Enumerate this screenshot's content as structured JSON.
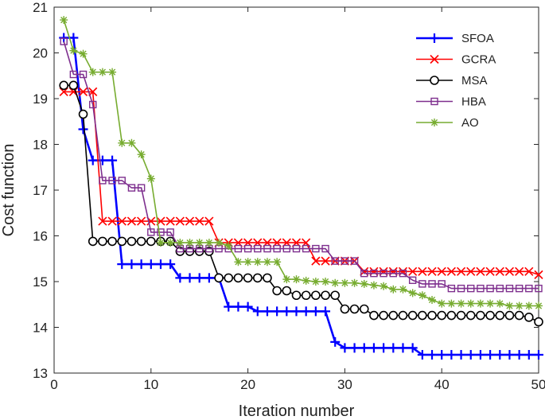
{
  "chart_data": {
    "type": "line",
    "xlabel": "Iteration number",
    "ylabel": "Cost function",
    "xlim": [
      0,
      50
    ],
    "ylim": [
      13,
      21
    ],
    "xticks": [
      0,
      10,
      20,
      30,
      40,
      50
    ],
    "yticks": [
      13,
      14,
      15,
      16,
      17,
      18,
      19,
      20,
      21
    ],
    "grid": false,
    "legend_position": "top-right",
    "x": [
      1,
      2,
      3,
      4,
      5,
      6,
      7,
      8,
      9,
      10,
      11,
      12,
      13,
      14,
      15,
      16,
      17,
      18,
      19,
      20,
      21,
      22,
      23,
      24,
      25,
      26,
      27,
      28,
      29,
      30,
      31,
      32,
      33,
      34,
      35,
      36,
      37,
      38,
      39,
      40,
      41,
      42,
      43,
      44,
      45,
      46,
      47,
      48,
      49,
      50
    ],
    "series": [
      {
        "name": "SFOA",
        "color": "#0000ff",
        "marker": "plus",
        "values": [
          20.33,
          20.33,
          18.33,
          17.65,
          17.65,
          17.65,
          15.38,
          15.38,
          15.38,
          15.38,
          15.38,
          15.38,
          15.08,
          15.08,
          15.08,
          15.08,
          15.08,
          14.45,
          14.45,
          14.45,
          14.35,
          14.35,
          14.35,
          14.35,
          14.35,
          14.35,
          14.35,
          14.35,
          13.68,
          13.55,
          13.55,
          13.55,
          13.55,
          13.55,
          13.55,
          13.55,
          13.55,
          13.4,
          13.4,
          13.4,
          13.4,
          13.4,
          13.4,
          13.4,
          13.4,
          13.4,
          13.4,
          13.4,
          13.4,
          13.4
        ]
      },
      {
        "name": "GCRA",
        "color": "#ff0000",
        "marker": "x",
        "values": [
          19.15,
          19.15,
          19.15,
          19.15,
          16.32,
          16.32,
          16.32,
          16.32,
          16.32,
          16.32,
          16.32,
          16.32,
          16.32,
          16.32,
          16.32,
          16.32,
          15.85,
          15.85,
          15.85,
          15.85,
          15.85,
          15.85,
          15.85,
          15.85,
          15.85,
          15.85,
          15.45,
          15.45,
          15.45,
          15.45,
          15.45,
          15.22,
          15.22,
          15.22,
          15.22,
          15.22,
          15.22,
          15.22,
          15.22,
          15.22,
          15.22,
          15.22,
          15.22,
          15.22,
          15.22,
          15.22,
          15.22,
          15.22,
          15.22,
          15.15
        ]
      },
      {
        "name": "MSA",
        "color": "#000000",
        "marker": "circle",
        "values": [
          19.29,
          19.29,
          18.66,
          15.88,
          15.88,
          15.88,
          15.88,
          15.88,
          15.88,
          15.88,
          15.88,
          15.88,
          15.66,
          15.66,
          15.66,
          15.66,
          15.08,
          15.08,
          15.08,
          15.08,
          15.08,
          15.08,
          14.8,
          14.8,
          14.7,
          14.7,
          14.7,
          14.7,
          14.7,
          14.4,
          14.4,
          14.4,
          14.26,
          14.26,
          14.26,
          14.26,
          14.26,
          14.26,
          14.26,
          14.26,
          14.26,
          14.26,
          14.26,
          14.26,
          14.26,
          14.26,
          14.26,
          14.26,
          14.22,
          14.12
        ]
      },
      {
        "name": "HBA",
        "color": "#7e2f8e",
        "marker": "square",
        "values": [
          20.25,
          19.53,
          19.53,
          18.87,
          17.21,
          17.21,
          17.21,
          17.05,
          17.05,
          16.08,
          16.08,
          16.08,
          15.72,
          15.72,
          15.72,
          15.72,
          15.72,
          15.72,
          15.72,
          15.72,
          15.72,
          15.72,
          15.72,
          15.72,
          15.72,
          15.72,
          15.72,
          15.72,
          15.45,
          15.45,
          15.45,
          15.18,
          15.18,
          15.18,
          15.18,
          15.18,
          15.03,
          14.95,
          14.95,
          14.95,
          14.85,
          14.85,
          14.85,
          14.85,
          14.85,
          14.85,
          14.85,
          14.85,
          14.85,
          14.85
        ]
      },
      {
        "name": "AO",
        "color": "#77ac30",
        "marker": "asterisk",
        "values": [
          20.72,
          20.05,
          19.98,
          19.58,
          19.58,
          19.58,
          18.03,
          18.03,
          17.78,
          17.25,
          15.85,
          15.85,
          15.85,
          15.85,
          15.85,
          15.85,
          15.85,
          15.78,
          15.43,
          15.43,
          15.43,
          15.43,
          15.43,
          15.05,
          15.05,
          15.02,
          15.0,
          15.0,
          14.97,
          14.97,
          14.97,
          14.95,
          14.92,
          14.9,
          14.83,
          14.83,
          14.75,
          14.7,
          14.6,
          14.52,
          14.52,
          14.52,
          14.52,
          14.52,
          14.52,
          14.52,
          14.47,
          14.47,
          14.47,
          14.47
        ]
      }
    ]
  }
}
